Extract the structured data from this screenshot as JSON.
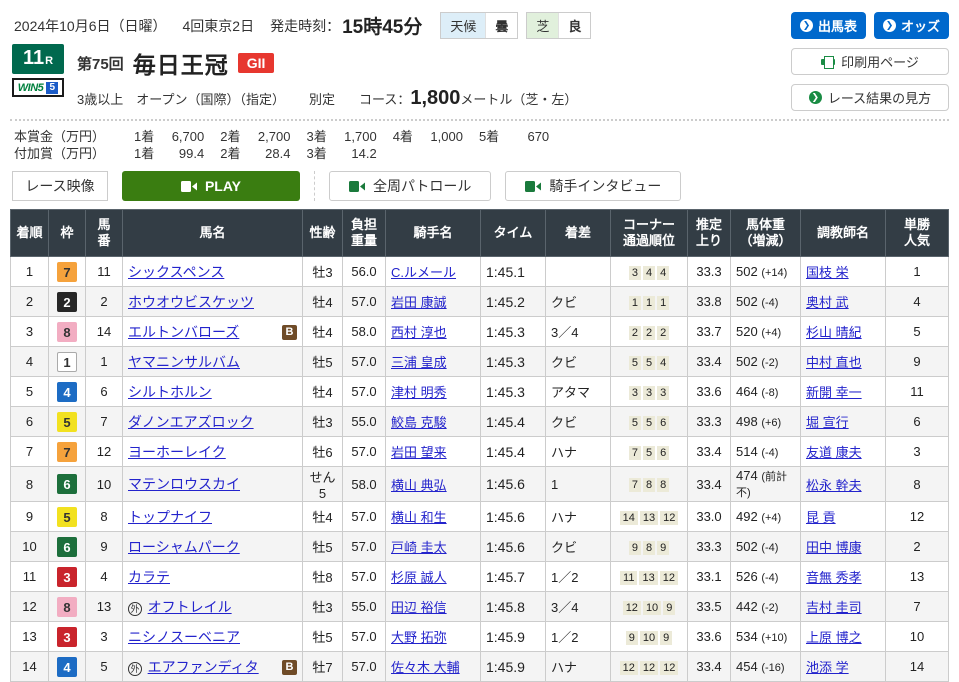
{
  "header": {
    "date": "2024年10月6日（日曜）",
    "meeting": "4回東京2日",
    "start_label": "発走時刻：",
    "start_time": "15時45分",
    "weather_label": "天候",
    "weather_value": "曇",
    "turf_label": "芝",
    "turf_value": "良",
    "buttons": {
      "entries": "出馬表",
      "odds": "オッズ",
      "print": "印刷用ページ",
      "guide": "レース結果の見方"
    }
  },
  "race": {
    "number": "11",
    "number_suffix": "R",
    "win5": "WIN5",
    "win5_num": "5",
    "edition": "第75回",
    "name": "毎日王冠",
    "grade": "GII",
    "conditions": "3歳以上　オープン（国際）（指定）",
    "weight_rule": "別定",
    "course_label": "コース：",
    "distance": "1,800",
    "distance_suffix": "メートル（芝・左）"
  },
  "prize": {
    "main_label": "本賞金（万円）",
    "main": [
      {
        "rank": "1着",
        "amount": "6,700"
      },
      {
        "rank": "2着",
        "amount": "2,700"
      },
      {
        "rank": "3着",
        "amount": "1,700"
      },
      {
        "rank": "4着",
        "amount": "1,000"
      },
      {
        "rank": "5着",
        "amount": "670"
      }
    ],
    "added_label": "付加賞（万円）",
    "added": [
      {
        "rank": "1着",
        "amount": "99.4"
      },
      {
        "rank": "2着",
        "amount": "28.4"
      },
      {
        "rank": "3着",
        "amount": "14.2"
      }
    ]
  },
  "video": {
    "label": "レース映像",
    "play": "PLAY",
    "patrol": "全周パトロール",
    "interview": "騎手インタビュー"
  },
  "table": {
    "headers": [
      "着順",
      "枠",
      "馬\n番",
      "馬名",
      "性齢",
      "負担\n重量",
      "騎手名",
      "タイム",
      "着差",
      "コーナー\n通過順位",
      "推定\n上り",
      "馬体重\n（増減）",
      "調教師名",
      "単勝\n人気"
    ],
    "rows": [
      {
        "pos": "1",
        "frame": "7",
        "num": "11",
        "horse": "シックスペンス",
        "mark": "",
        "blinker": false,
        "sex_age": "牡3",
        "load": "56.0",
        "jockey": "C.ルメール",
        "time": "1:45.1",
        "margin": "",
        "corners": [
          "3",
          "4",
          "4"
        ],
        "last3f": "33.3",
        "body_weight": "502",
        "weight_diff": "(+14)",
        "trainer": "国枝 栄",
        "popularity": "1"
      },
      {
        "pos": "2",
        "frame": "2",
        "num": "2",
        "horse": "ホウオウビスケッツ",
        "mark": "",
        "blinker": false,
        "sex_age": "牡4",
        "load": "57.0",
        "jockey": "岩田 康誠",
        "time": "1:45.2",
        "margin": "クビ",
        "corners": [
          "1",
          "1",
          "1"
        ],
        "last3f": "33.8",
        "body_weight": "502",
        "weight_diff": "(-4)",
        "trainer": "奥村 武",
        "popularity": "4"
      },
      {
        "pos": "3",
        "frame": "8",
        "num": "14",
        "horse": "エルトンバローズ",
        "mark": "",
        "blinker": true,
        "sex_age": "牡4",
        "load": "58.0",
        "jockey": "西村 淳也",
        "time": "1:45.3",
        "margin": "3／4",
        "corners": [
          "2",
          "2",
          "2"
        ],
        "last3f": "33.7",
        "body_weight": "520",
        "weight_diff": "(+4)",
        "trainer": "杉山 晴紀",
        "popularity": "5"
      },
      {
        "pos": "4",
        "frame": "1",
        "num": "1",
        "horse": "ヤマニンサルバム",
        "mark": "",
        "blinker": false,
        "sex_age": "牡5",
        "load": "57.0",
        "jockey": "三浦 皇成",
        "time": "1:45.3",
        "margin": "クビ",
        "corners": [
          "5",
          "5",
          "4"
        ],
        "last3f": "33.4",
        "body_weight": "502",
        "weight_diff": "(-2)",
        "trainer": "中村 直也",
        "popularity": "9"
      },
      {
        "pos": "5",
        "frame": "4",
        "num": "6",
        "horse": "シルトホルン",
        "mark": "",
        "blinker": false,
        "sex_age": "牡4",
        "load": "57.0",
        "jockey": "津村 明秀",
        "time": "1:45.3",
        "margin": "アタマ",
        "corners": [
          "3",
          "3",
          "3"
        ],
        "last3f": "33.6",
        "body_weight": "464",
        "weight_diff": "(-8)",
        "trainer": "新開 幸一",
        "popularity": "11"
      },
      {
        "pos": "6",
        "frame": "5",
        "num": "7",
        "horse": "ダノンエアズロック",
        "mark": "",
        "blinker": false,
        "sex_age": "牡3",
        "load": "55.0",
        "jockey": "鮫島 克駿",
        "time": "1:45.4",
        "margin": "クビ",
        "corners": [
          "5",
          "5",
          "6"
        ],
        "last3f": "33.3",
        "body_weight": "498",
        "weight_diff": "(+6)",
        "trainer": "堀 宣行",
        "popularity": "6"
      },
      {
        "pos": "7",
        "frame": "7",
        "num": "12",
        "horse": "ヨーホーレイク",
        "mark": "",
        "blinker": false,
        "sex_age": "牡6",
        "load": "57.0",
        "jockey": "岩田 望来",
        "time": "1:45.4",
        "margin": "ハナ",
        "corners": [
          "7",
          "5",
          "6"
        ],
        "last3f": "33.4",
        "body_weight": "514",
        "weight_diff": "(-4)",
        "trainer": "友道 康夫",
        "popularity": "3"
      },
      {
        "pos": "8",
        "frame": "6",
        "num": "10",
        "horse": "マテンロウスカイ",
        "mark": "",
        "blinker": false,
        "sex_age": "せん5",
        "load": "58.0",
        "jockey": "横山 典弘",
        "time": "1:45.6",
        "margin": "1",
        "corners": [
          "7",
          "8",
          "8"
        ],
        "last3f": "33.4",
        "body_weight": "474",
        "weight_diff": "(前計不)",
        "trainer": "松永 幹夫",
        "popularity": "8"
      },
      {
        "pos": "9",
        "frame": "5",
        "num": "8",
        "horse": "トップナイフ",
        "mark": "",
        "blinker": false,
        "sex_age": "牡4",
        "load": "57.0",
        "jockey": "横山 和生",
        "time": "1:45.6",
        "margin": "ハナ",
        "corners": [
          "14",
          "13",
          "12"
        ],
        "last3f": "33.0",
        "body_weight": "492",
        "weight_diff": "(+4)",
        "trainer": "昆 貢",
        "popularity": "12"
      },
      {
        "pos": "10",
        "frame": "6",
        "num": "9",
        "horse": "ローシャムパーク",
        "mark": "",
        "blinker": false,
        "sex_age": "牡5",
        "load": "57.0",
        "jockey": "戸崎 圭太",
        "time": "1:45.6",
        "margin": "クビ",
        "corners": [
          "9",
          "8",
          "9"
        ],
        "last3f": "33.3",
        "body_weight": "502",
        "weight_diff": "(-4)",
        "trainer": "田中 博康",
        "popularity": "2"
      },
      {
        "pos": "11",
        "frame": "3",
        "num": "4",
        "horse": "カラテ",
        "mark": "",
        "blinker": false,
        "sex_age": "牡8",
        "load": "57.0",
        "jockey": "杉原 誠人",
        "time": "1:45.7",
        "margin": "1／2",
        "corners": [
          "11",
          "13",
          "12"
        ],
        "last3f": "33.1",
        "body_weight": "526",
        "weight_diff": "(-4)",
        "trainer": "音無 秀孝",
        "popularity": "13"
      },
      {
        "pos": "12",
        "frame": "8",
        "num": "13",
        "horse": "オフトレイル",
        "mark": "外",
        "blinker": false,
        "sex_age": "牡3",
        "load": "55.0",
        "jockey": "田辺 裕信",
        "time": "1:45.8",
        "margin": "3／4",
        "corners": [
          "12",
          "10",
          "9"
        ],
        "last3f": "33.5",
        "body_weight": "442",
        "weight_diff": "(-2)",
        "trainer": "吉村 圭司",
        "popularity": "7"
      },
      {
        "pos": "13",
        "frame": "3",
        "num": "3",
        "horse": "ニシノスーベニア",
        "mark": "",
        "blinker": false,
        "sex_age": "牡5",
        "load": "57.0",
        "jockey": "大野 拓弥",
        "time": "1:45.9",
        "margin": "1／2",
        "corners": [
          "9",
          "10",
          "9"
        ],
        "last3f": "33.6",
        "body_weight": "534",
        "weight_diff": "(+10)",
        "trainer": "上原 博之",
        "popularity": "10"
      },
      {
        "pos": "14",
        "frame": "4",
        "num": "5",
        "horse": "エアファンディタ",
        "mark": "外",
        "blinker": true,
        "sex_age": "牡7",
        "load": "57.0",
        "jockey": "佐々木 大輔",
        "time": "1:45.9",
        "margin": "ハナ",
        "corners": [
          "12",
          "12",
          "12"
        ],
        "last3f": "33.4",
        "body_weight": "454",
        "weight_diff": "(-16)",
        "trainer": "池添 学",
        "popularity": "14"
      }
    ]
  },
  "colors": {
    "accent_blue": "#0068cc",
    "race_number_green": "#00694e",
    "play_green": "#3a7d11",
    "grade_red": "#e7372f",
    "table_header_bg": "#333d45",
    "link_blue": "#2323cc",
    "corner_chip_bg": "#ecead8",
    "frames": {
      "1": {
        "bg": "#ffffff",
        "fg": "#333333",
        "border": "#aaaaaa"
      },
      "2": {
        "bg": "#272727",
        "fg": "#ffffff",
        "border": "#272727"
      },
      "3": {
        "bg": "#c9242c",
        "fg": "#ffffff",
        "border": "#c9242c"
      },
      "4": {
        "bg": "#1d6cc4",
        "fg": "#ffffff",
        "border": "#1d6cc4"
      },
      "5": {
        "bg": "#f2e120",
        "fg": "#333333",
        "border": "#f2e120"
      },
      "6": {
        "bg": "#1d6f3c",
        "fg": "#ffffff",
        "border": "#1d6f3c"
      },
      "7": {
        "bg": "#f5a23c",
        "fg": "#333333",
        "border": "#f5a23c"
      },
      "8": {
        "bg": "#f2adc2",
        "fg": "#333333",
        "border": "#f2adc2"
      }
    }
  }
}
